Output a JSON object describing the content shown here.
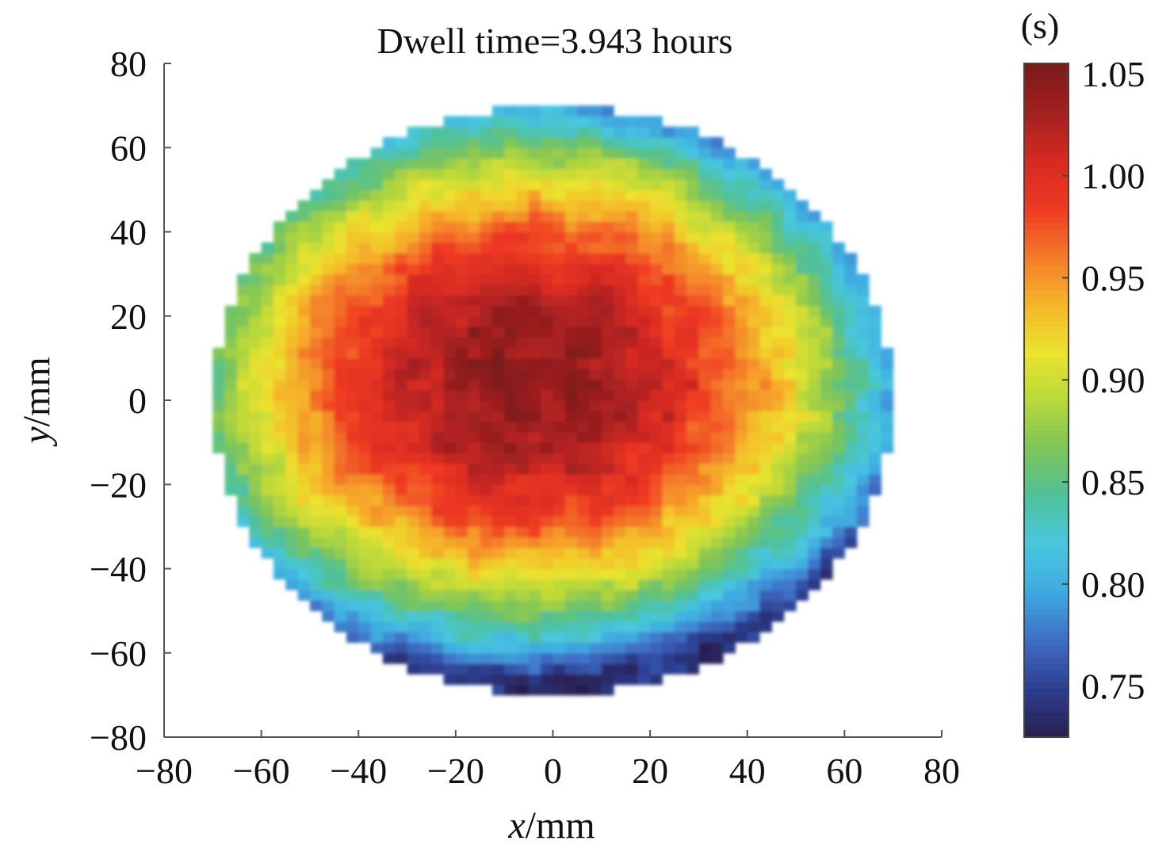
{
  "chart_data": {
    "type": "heatmap",
    "title": "Dwell time=3.943 hours",
    "xlabel": {
      "var": "x",
      "unit": "/mm"
    },
    "ylabel": {
      "var": "y",
      "unit": "/mm"
    },
    "xlim": [
      -80,
      80
    ],
    "ylim": [
      -80,
      80
    ],
    "xticks": [
      -80,
      -60,
      -40,
      -20,
      0,
      20,
      40,
      60,
      80
    ],
    "yticks": [
      80,
      60,
      40,
      20,
      0,
      -20,
      -40,
      -60,
      -80
    ],
    "xtick_labels": [
      "−80",
      "−60",
      "−40",
      "−20",
      "0",
      "20",
      "40",
      "60",
      "80"
    ],
    "ytick_labels": [
      "80",
      "60",
      "40",
      "20",
      "0",
      "−20",
      "−40",
      "−60",
      "−80"
    ],
    "grid": false,
    "region": {
      "shape": "disk",
      "center": [
        0,
        0
      ],
      "radius": 70
    },
    "field_description_values": {
      "center_value": 1.04,
      "edge_value": 0.74,
      "peak_offset": [
        -5,
        5
      ]
    },
    "colorbar": {
      "unit_label": "(s)",
      "min": 0.725,
      "max": 1.055,
      "ticks": [
        1.05,
        1.0,
        0.95,
        0.9,
        0.85,
        0.8,
        0.75
      ],
      "tick_labels": [
        "1.05",
        "1.00",
        "0.95",
        "0.90",
        "0.85",
        "0.80",
        "0.75"
      ],
      "colormap": [
        "#2b1f4f",
        "#2c3d8f",
        "#3f6cc4",
        "#3fa8e0",
        "#48c7e0",
        "#4fc19a",
        "#7dc45a",
        "#b8d83a",
        "#ece32e",
        "#f5b52a",
        "#f47a2a",
        "#ef3a22",
        "#d52a22",
        "#a32020",
        "#7a1a1a"
      ]
    }
  }
}
